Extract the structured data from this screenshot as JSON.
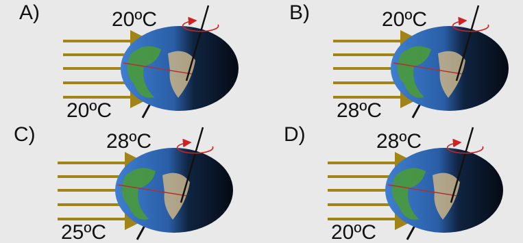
{
  "panels": [
    {
      "label": "A)",
      "top": "20ºC",
      "bottom": "20ºC"
    },
    {
      "label": "B)",
      "top": "20ºC",
      "bottom": "28ºC"
    },
    {
      "label": "C)",
      "top": "28ºC",
      "bottom": "25ºC"
    },
    {
      "label": "D)",
      "top": "28ºC",
      "bottom": "20ºC"
    }
  ]
}
